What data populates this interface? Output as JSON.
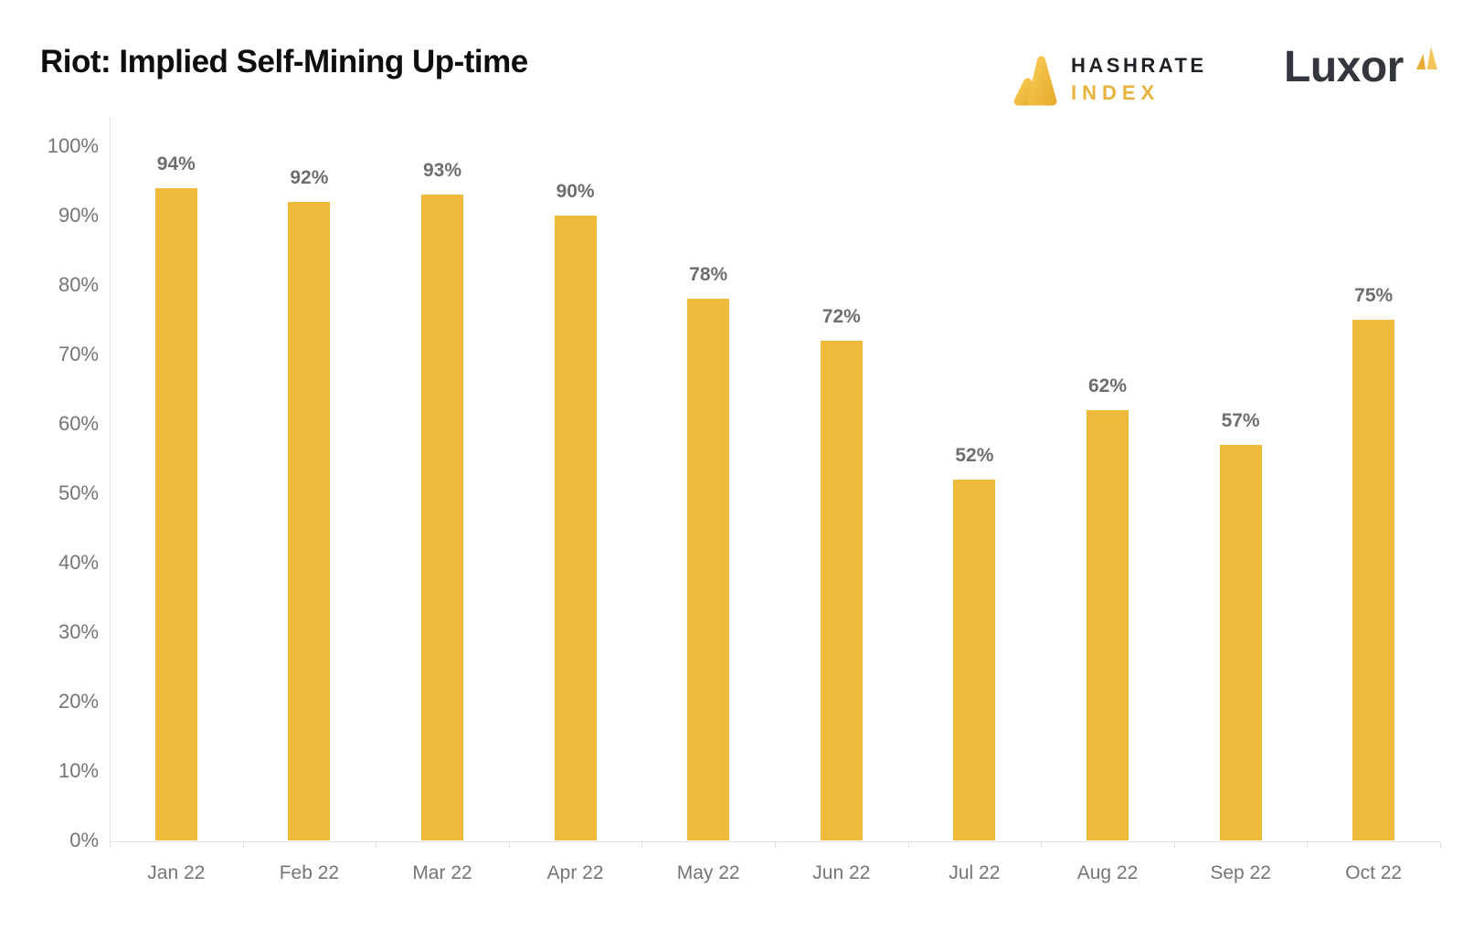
{
  "header": {
    "title": "Riot: Implied Self-Mining Up-time",
    "hashrate_logo": {
      "line1": "HASHRATE",
      "line2": "INDEX"
    },
    "luxor_logo": {
      "text": "Luxor"
    }
  },
  "colors": {
    "bar": "#efba3c",
    "gold_light": "#f5c84e",
    "gold_dark": "#e8a930",
    "axis_line": "#e2e2e2",
    "tick_text": "#757575",
    "value_label_text": "#6e6e6e",
    "title_text": "#0e0e0e",
    "luxor_text": "#33363c"
  },
  "chart_data": {
    "type": "bar",
    "title": "Riot: Implied Self-Mining Up-time",
    "categories": [
      "Jan 22",
      "Feb 22",
      "Mar 22",
      "Apr 22",
      "May 22",
      "Jun 22",
      "Jul 22",
      "Aug 22",
      "Sep 22",
      "Oct 22"
    ],
    "values": [
      94,
      92,
      93,
      90,
      78,
      72,
      52,
      62,
      57,
      75
    ],
    "value_labels": [
      "94%",
      "92%",
      "93%",
      "90%",
      "78%",
      "72%",
      "52%",
      "62%",
      "57%",
      "75%"
    ],
    "xlabel": "",
    "ylabel": "",
    "ylim": [
      0,
      100
    ],
    "y_tick_values": [
      0,
      10,
      20,
      30,
      40,
      50,
      60,
      70,
      80,
      90,
      100
    ],
    "y_tick_labels": [
      "0%",
      "10%",
      "20%",
      "30%",
      "40%",
      "50%",
      "60%",
      "70%",
      "80%",
      "90%",
      "100%"
    ],
    "grid": false,
    "legend": false,
    "bar_color": "#efba3c"
  }
}
